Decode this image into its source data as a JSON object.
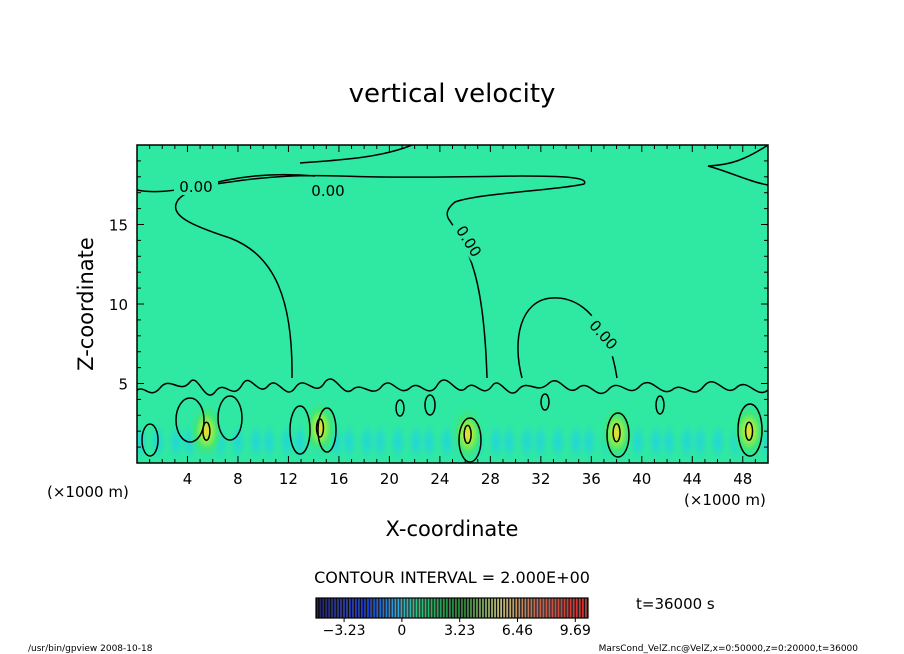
{
  "chart_data": {
    "type": "heatmap",
    "title": "vertical velocity",
    "xlabel": "X-coordinate",
    "ylabel": "Z-coordinate",
    "x_unit_left": "(×1000 m)",
    "x_unit_right": "(×1000 m)",
    "xlim": [
      0,
      50
    ],
    "ylim": [
      0,
      20
    ],
    "xticks": [
      4,
      8,
      12,
      16,
      20,
      24,
      28,
      32,
      36,
      40,
      44,
      48
    ],
    "yticks": [
      5,
      10,
      15
    ],
    "contour_label": "0.00",
    "contour_interval_text": "CONTOUR INTERVAL = 2.000E+00",
    "time_text": "t=36000 s",
    "colorbar": {
      "range": [
        -4.8,
        10.4
      ],
      "tick_values": [
        -3.23,
        0,
        3.23,
        6.46,
        9.69
      ],
      "tick_labels": [
        "−3.23",
        "0",
        "3.23",
        "6.46",
        "9.69"
      ]
    },
    "updraft_cores": [
      {
        "x": 5.5,
        "z": 2.0
      },
      {
        "x": 14.5,
        "z": 2.2
      },
      {
        "x": 26.2,
        "z": 1.8
      },
      {
        "x": 38.0,
        "z": 1.9
      },
      {
        "x": 48.5,
        "z": 2.0
      }
    ],
    "footer_left": "/usr/bin/gpview   2008-10-18",
    "footer_right": "MarsCond_VelZ.nc@VelZ,x=0:50000,z=0:20000,t=36000"
  },
  "colors": {
    "background_field": "#2fe8a2",
    "contour": "#000000"
  }
}
